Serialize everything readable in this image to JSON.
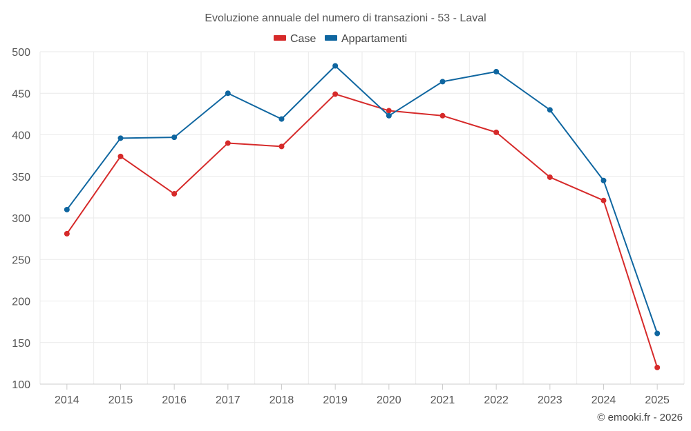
{
  "chart_data": {
    "type": "line",
    "title": "Evoluzione annuale del numero di transazioni - 53 - Laval",
    "categories": [
      "2014",
      "2015",
      "2016",
      "2017",
      "2018",
      "2019",
      "2020",
      "2021",
      "2022",
      "2023",
      "2024",
      "2025"
    ],
    "series": [
      {
        "name": "Case",
        "color": "#d62a2a",
        "values": [
          281,
          374,
          329,
          390,
          386,
          449,
          429,
          423,
          403,
          349,
          321,
          120
        ]
      },
      {
        "name": "Appartamenti",
        "color": "#0f66a0",
        "values": [
          310,
          396,
          397,
          450,
          419,
          483,
          423,
          464,
          476,
          430,
          345,
          161
        ]
      }
    ],
    "ylim": [
      100,
      500
    ],
    "yticks": [
      100,
      150,
      200,
      250,
      300,
      350,
      400,
      450,
      500
    ],
    "xlabel": "",
    "ylabel": "",
    "grid": true,
    "legend": "top-center"
  },
  "credit": "© emooki.fr - 2026"
}
